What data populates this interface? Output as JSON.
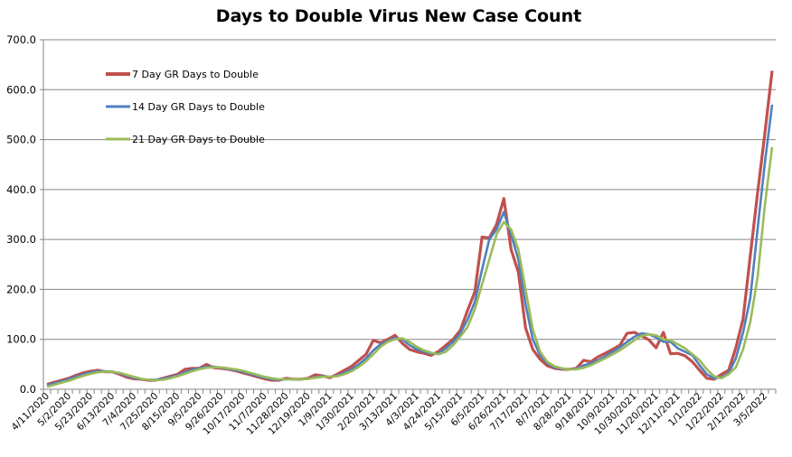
{
  "chart_data": {
    "type": "line",
    "title": "Days to Double Virus New Case Count",
    "xlabel": "",
    "ylabel": "",
    "ylim": [
      0,
      700
    ],
    "y_ticks": [
      "0.0",
      "100.0",
      "200.0",
      "300.0",
      "400.0",
      "500.0",
      "600.0",
      "700.0"
    ],
    "x_tick_labels": [
      "4/11/2020",
      "5/2/2020",
      "5/23/2020",
      "6/13/2020",
      "7/4/2020",
      "7/25/2020",
      "8/15/2020",
      "9/5/2020",
      "9/26/2020",
      "10/17/2020",
      "11/7/2020",
      "11/28/2020",
      "12/19/2020",
      "1/9/2021",
      "1/30/2021",
      "2/20/2021",
      "3/13/2021",
      "4/3/2021",
      "4/24/2021",
      "5/15/2021",
      "6/5/2021",
      "6/26/2021",
      "7/17/2021",
      "8/7/2021",
      "8/28/2021",
      "9/18/2021",
      "10/9/2021",
      "10/30/2021",
      "11/20/2021",
      "12/11/2021",
      "1/1/2022",
      "1/22/2022",
      "2/12/2022",
      "3/5/2022"
    ],
    "grid": "horizontal",
    "legend_placement": "top-left inside plot",
    "series": [
      {
        "name": "7 Day GR Days to Double",
        "color": "#C0504D",
        "values": [
          10,
          14,
          18,
          22,
          28,
          33,
          36,
          38,
          35,
          35,
          30,
          24,
          21,
          20,
          18,
          18,
          22,
          26,
          30,
          40,
          42,
          42,
          50,
          43,
          42,
          40,
          37,
          33,
          29,
          25,
          21,
          18,
          18,
          22,
          20,
          20,
          22,
          29,
          27,
          23,
          30,
          38,
          46,
          58,
          70,
          98,
          93,
          100,
          108,
          92,
          80,
          75,
          72,
          68,
          76,
          88,
          100,
          118,
          158,
          195,
          305,
          303,
          330,
          382,
          280,
          235,
          123,
          80,
          60,
          47,
          42,
          40,
          40,
          42,
          58,
          55,
          65,
          72,
          80,
          88,
          112,
          114,
          107,
          99,
          83,
          114,
          71,
          72,
          67,
          55,
          38,
          22,
          20,
          30,
          38,
          83,
          141,
          268,
          394,
          513,
          638
        ]
      },
      {
        "name": "14 Day GR Days to Double",
        "color": "#4F81BD",
        "values": [
          8,
          12,
          16,
          20,
          25,
          30,
          34,
          36,
          36,
          35,
          32,
          27,
          23,
          20,
          19,
          19,
          21,
          24,
          28,
          34,
          39,
          42,
          45,
          45,
          43,
          41,
          38,
          35,
          31,
          27,
          23,
          20,
          19,
          20,
          20,
          20,
          21,
          24,
          26,
          25,
          27,
          33,
          40,
          50,
          62,
          78,
          90,
          97,
          103,
          100,
          88,
          80,
          75,
          71,
          72,
          82,
          95,
          112,
          140,
          175,
          240,
          300,
          320,
          355,
          310,
          260,
          170,
          100,
          68,
          52,
          44,
          41,
          40,
          41,
          48,
          52,
          58,
          66,
          75,
          84,
          95,
          105,
          112,
          110,
          104,
          95,
          95,
          82,
          75,
          68,
          48,
          30,
          22,
          24,
          32,
          62,
          114,
          183,
          322,
          454,
          570
        ]
      },
      {
        "name": "21 Day GR Days to Double",
        "color": "#9BBB59",
        "values": [
          5,
          9,
          13,
          17,
          22,
          27,
          31,
          34,
          35,
          35,
          33,
          29,
          25,
          21,
          19,
          18,
          19,
          22,
          26,
          31,
          36,
          40,
          43,
          44,
          44,
          42,
          40,
          37,
          33,
          29,
          25,
          22,
          20,
          20,
          20,
          20,
          21,
          23,
          25,
          25,
          26,
          30,
          36,
          45,
          56,
          70,
          85,
          95,
          100,
          102,
          95,
          85,
          78,
          73,
          70,
          75,
          88,
          105,
          125,
          160,
          210,
          260,
          310,
          335,
          320,
          280,
          200,
          120,
          75,
          55,
          46,
          42,
          40,
          40,
          43,
          48,
          55,
          62,
          70,
          78,
          88,
          98,
          107,
          110,
          108,
          100,
          98,
          90,
          82,
          70,
          58,
          40,
          26,
          22,
          30,
          44,
          80,
          135,
          225,
          369,
          485
        ]
      }
    ]
  }
}
